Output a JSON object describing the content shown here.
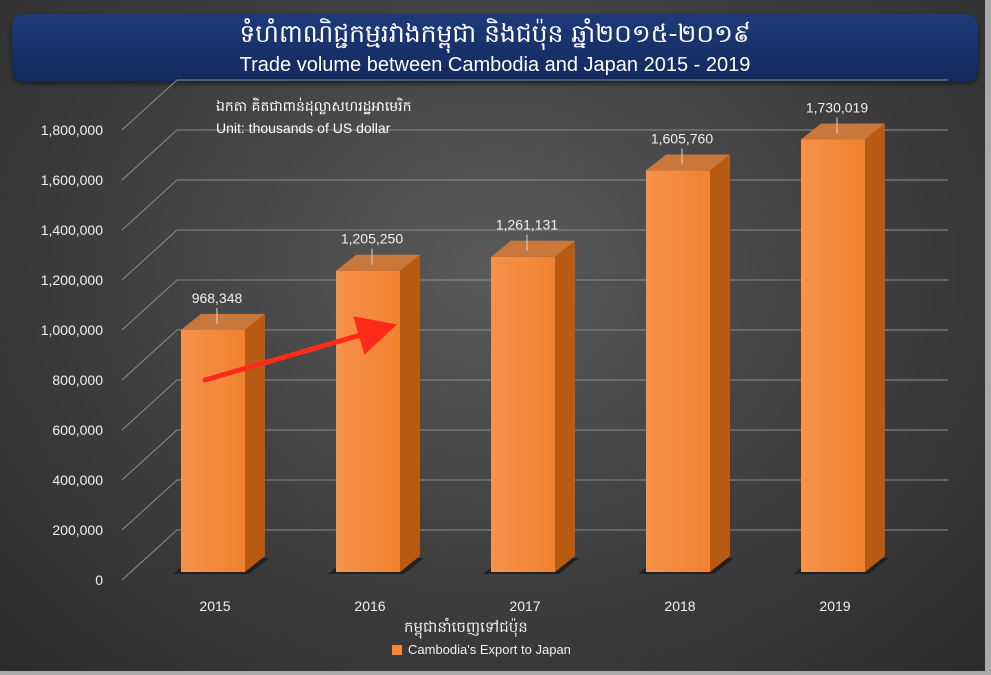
{
  "header": {
    "title_km": "ទំហំពាណិជ្ជកម្មរវាងកម្ពុជា និងជប៉ុន ឆ្នាំ២០១៥-២០១៩",
    "title_en": "Trade volume between Cambodia and Japan 2015 - 2019"
  },
  "unit_note": {
    "km": "ឯកតា គិតជាពាន់ដុល្លាសហរដ្ឋអាមេរិក",
    "en": "Unit: thousands of US dollar"
  },
  "legend": {
    "title_km": "កម្ពុជានាំចេញទៅជប៉ុន",
    "series_label": "Cambodia's Export to Japan"
  },
  "colors": {
    "bar_front": "#f28a3a",
    "bar_top": "#c9773a",
    "bar_side": "#b85a12",
    "arrow": "#ff2a1a",
    "header_bg": "#1a347a"
  },
  "chart_data": {
    "type": "bar",
    "style": "3d-column",
    "categories": [
      "2015",
      "2016",
      "2017",
      "2018",
      "2019"
    ],
    "series": [
      {
        "name": "Cambodia's Export to Japan",
        "values": [
          968348,
          1205250,
          1261131,
          1605760,
          1730019
        ]
      }
    ],
    "data_labels": [
      "968,348",
      "1,205,250",
      "1,261,131",
      "1,605,760",
      "1,730,019"
    ],
    "y_ticks": [
      "0",
      "200,000",
      "400,000",
      "600,000",
      "800,000",
      "1,000,000",
      "1,200,000",
      "1,400,000",
      "1,600,000",
      "1,800,000"
    ],
    "ylim": [
      0,
      1800000
    ],
    "grid": true,
    "legend_position": "bottom",
    "annotation": "red upward arrow from 2015 to 2016"
  }
}
